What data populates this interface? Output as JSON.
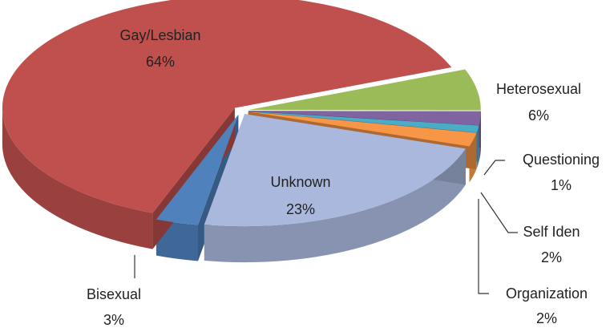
{
  "chart_data": {
    "type": "pie",
    "categories": [
      "Bisexual",
      "Gay/Lesbian",
      "Heterosexual",
      "Organization",
      "Questioning",
      "Self Iden",
      "Unknown"
    ],
    "values": [
      3,
      64,
      6,
      2,
      1,
      2,
      23
    ],
    "value_labels": [
      "3%",
      "64%",
      "6%",
      "2%",
      "1%",
      "2%",
      "23%"
    ],
    "colors": [
      "#4f81bd",
      "#c0504d",
      "#9bbb59",
      "#8064a2",
      "#4bacc6",
      "#f79646",
      "#a9b8dc"
    ]
  }
}
